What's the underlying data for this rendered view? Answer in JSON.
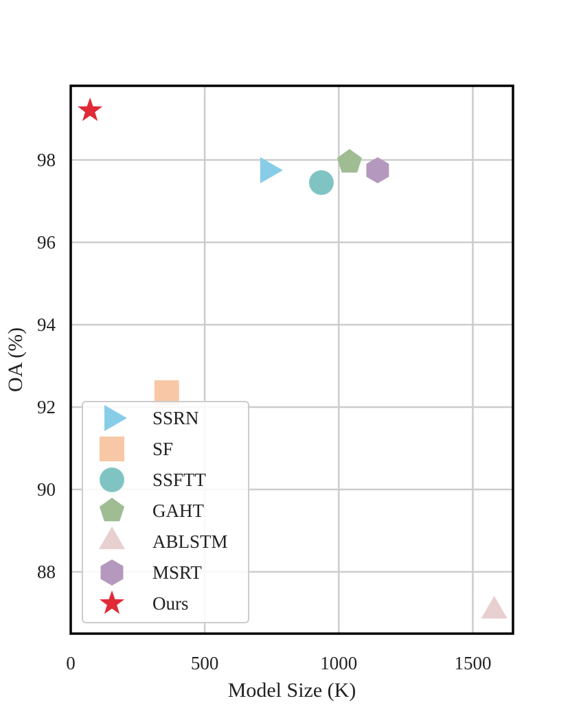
{
  "chart_data": {
    "type": "scatter",
    "title": "",
    "xlabel": "Model Size (K)",
    "ylabel": "OA (%)",
    "xlim": [
      0,
      1650
    ],
    "ylim": [
      86.5,
      99.8
    ],
    "x_ticks": [
      0,
      500,
      1000,
      1500
    ],
    "y_ticks": [
      88,
      90,
      92,
      94,
      96,
      98
    ],
    "grid": true,
    "legend_position": "lower-left",
    "series": [
      {
        "name": "SSRN",
        "marker": "triangle-right",
        "color": "#87cde8",
        "x": 735,
        "y": 97.75
      },
      {
        "name": "SF",
        "marker": "square",
        "color": "#f7c7a6",
        "x": 358,
        "y": 92.35
      },
      {
        "name": "SSFTT",
        "marker": "circle",
        "color": "#7fc4c3",
        "x": 935,
        "y": 97.45
      },
      {
        "name": "GAHT",
        "marker": "pentagon",
        "color": "#9fbc93",
        "x": 1040,
        "y": 97.95
      },
      {
        "name": "ABLSTM",
        "marker": "triangle-up",
        "color": "#e8cfd0",
        "x": 1580,
        "y": 87.05
      },
      {
        "name": "MSRT",
        "marker": "hexagon",
        "color": "#b598bd",
        "x": 1145,
        "y": 97.75
      },
      {
        "name": "Ours",
        "marker": "star",
        "color": "#e02a37",
        "x": 72,
        "y": 99.2
      }
    ]
  }
}
